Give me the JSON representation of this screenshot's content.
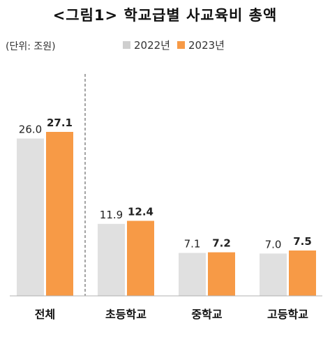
{
  "title": "<그림1> 학교급별 사교육비 총액",
  "unit": "(단위: 조원)",
  "colors": {
    "2022": "#e0e0e0",
    "2023": "#f79a46",
    "axis": "#b0b0b0",
    "separator": "#666666"
  },
  "chart_data": {
    "type": "bar",
    "title": "<그림1> 학교급별 사교육비 총액",
    "categories": [
      "전체",
      "초등학교",
      "중학교",
      "고등학교"
    ],
    "series": [
      {
        "name": "2022년",
        "values": [
          26.0,
          11.9,
          7.1,
          7.0
        ]
      },
      {
        "name": "2023년",
        "values": [
          27.1,
          12.4,
          7.2,
          7.5
        ]
      }
    ],
    "legend_position": "top",
    "grid": false
  }
}
